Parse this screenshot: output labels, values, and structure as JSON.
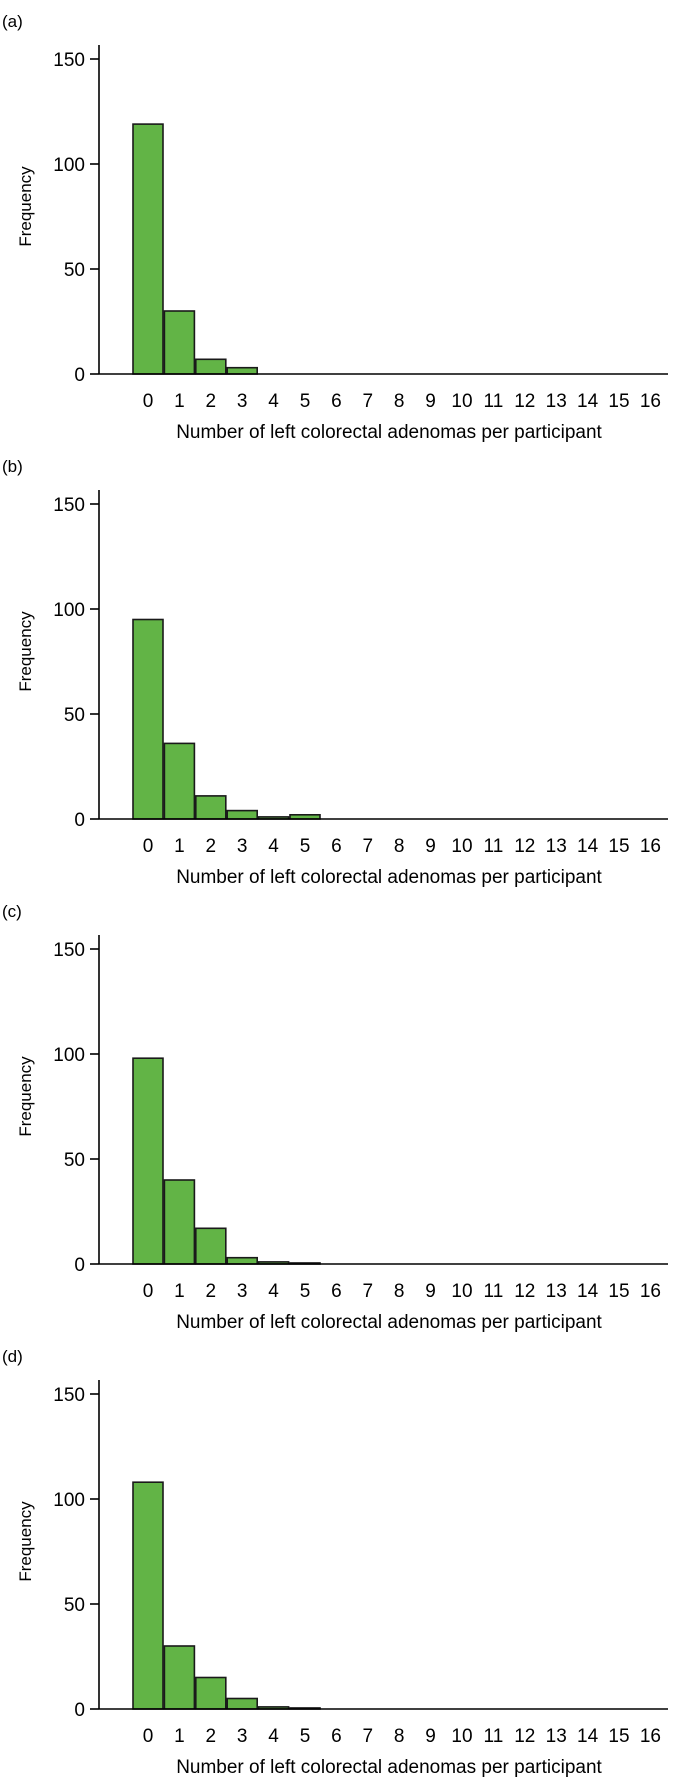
{
  "colors": {
    "bar_fill": "#62b446",
    "bar_stroke": "#1a1a1a",
    "axis": "#000000"
  },
  "chart_data": [
    {
      "type": "bar",
      "panel_label": "(a)",
      "xlabel": "Number of left colorectal adenomas per participant",
      "ylabel": "Frequency",
      "categories": [
        "0",
        "1",
        "2",
        "3",
        "4",
        "5",
        "6",
        "7",
        "8",
        "9",
        "10",
        "11",
        "12",
        "13",
        "14",
        "15",
        "16"
      ],
      "values": [
        119,
        30,
        7,
        3,
        0,
        0,
        0,
        0,
        0,
        0,
        0,
        0,
        0,
        0,
        0,
        0,
        0
      ],
      "yticks": [
        "0",
        "50",
        "100",
        "150"
      ],
      "ylim": [
        0,
        150
      ],
      "grid": false
    },
    {
      "type": "bar",
      "panel_label": "(b)",
      "xlabel": "Number of left colorectal adenomas per participant",
      "ylabel": "Frequency",
      "categories": [
        "0",
        "1",
        "2",
        "3",
        "4",
        "5",
        "6",
        "7",
        "8",
        "9",
        "10",
        "11",
        "12",
        "13",
        "14",
        "15",
        "16"
      ],
      "values": [
        95,
        36,
        11,
        4,
        1,
        2,
        0,
        0,
        0,
        0,
        0,
        0,
        0,
        0,
        0,
        0,
        0
      ],
      "yticks": [
        "0",
        "50",
        "100",
        "150"
      ],
      "ylim": [
        0,
        150
      ],
      "grid": false
    },
    {
      "type": "bar",
      "panel_label": "(c)",
      "xlabel": "Number of left colorectal adenomas per participant",
      "ylabel": "Frequency",
      "categories": [
        "0",
        "1",
        "2",
        "3",
        "4",
        "5",
        "6",
        "7",
        "8",
        "9",
        "10",
        "11",
        "12",
        "13",
        "14",
        "15",
        "16"
      ],
      "values": [
        98,
        40,
        17,
        3,
        1,
        0.5,
        0,
        0,
        0,
        0,
        0,
        0,
        0,
        0,
        0,
        0,
        0
      ],
      "yticks": [
        "0",
        "50",
        "100",
        "150"
      ],
      "ylim": [
        0,
        150
      ],
      "grid": false
    },
    {
      "type": "bar",
      "panel_label": "(d)",
      "xlabel": "Number of left colorectal adenomas per participant",
      "ylabel": "Frequency",
      "categories": [
        "0",
        "1",
        "2",
        "3",
        "4",
        "5",
        "6",
        "7",
        "8",
        "9",
        "10",
        "11",
        "12",
        "13",
        "14",
        "15",
        "16"
      ],
      "values": [
        108,
        30,
        15,
        5,
        1,
        0.5,
        0,
        0,
        0,
        0,
        0,
        0,
        0,
        0,
        0,
        0,
        0
      ],
      "yticks": [
        "0",
        "50",
        "100",
        "150"
      ],
      "ylim": [
        0,
        150
      ],
      "grid": false
    }
  ]
}
